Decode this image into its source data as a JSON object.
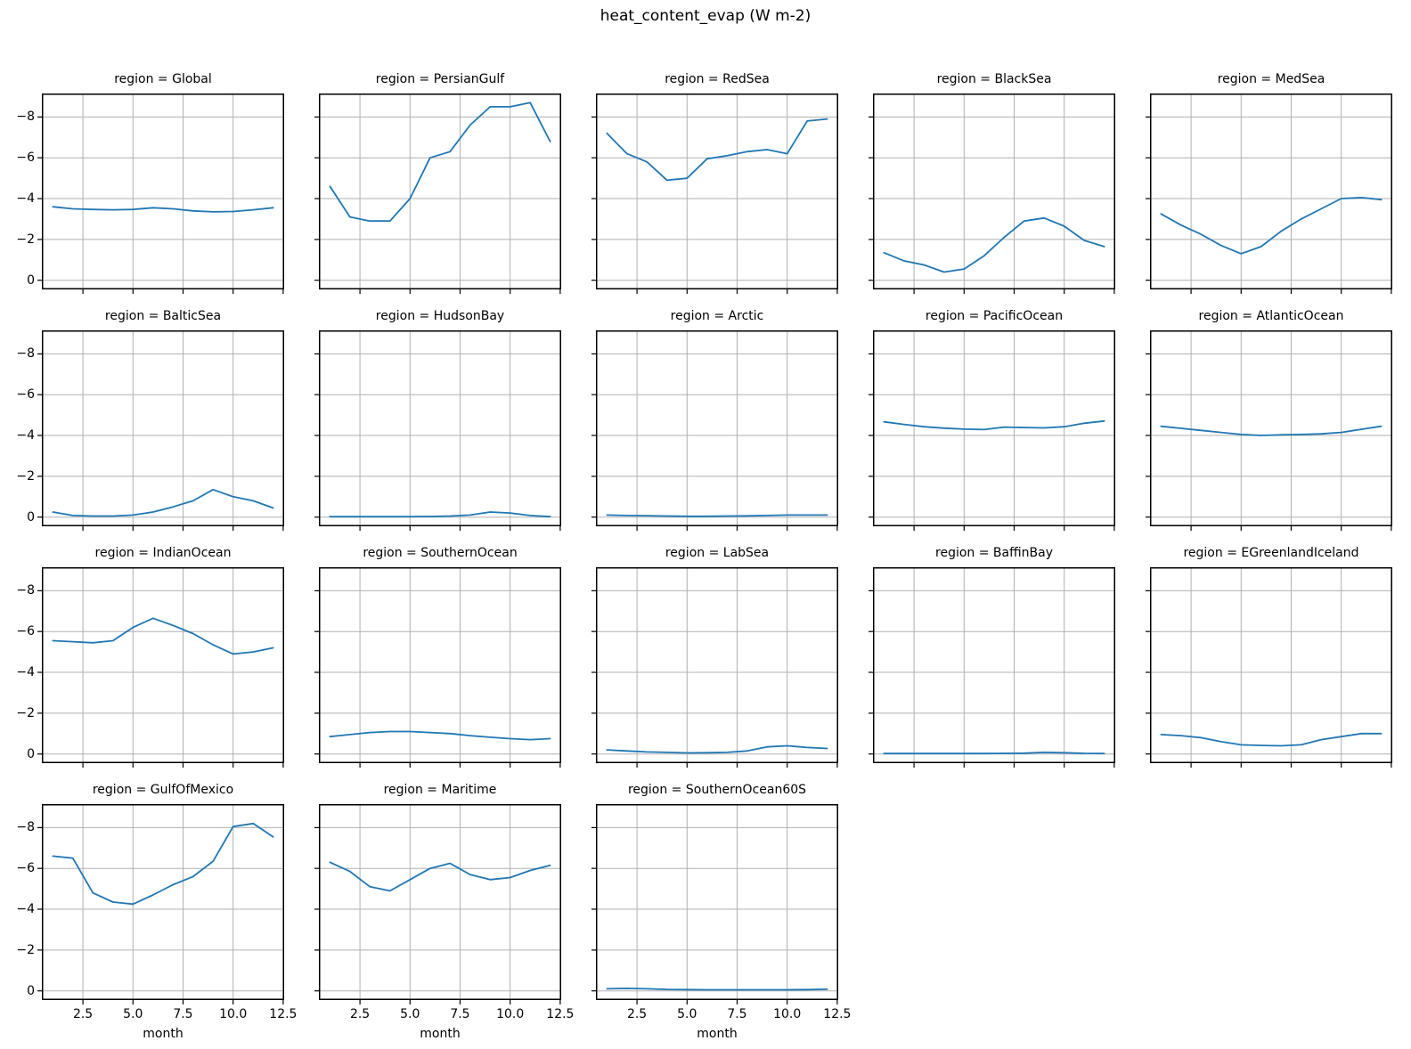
{
  "chart_data": {
    "type": "line",
    "title": "heat_content_evap (W m-2)",
    "xlabel": "month",
    "grid": true,
    "legend": "none",
    "line_color": "#1f77b4",
    "y_axis_inverted": true,
    "x_range": [
      0.45,
      12.55
    ],
    "y_range_top_to_bottom": [
      -9.15,
      0.45
    ],
    "x_ticks": {
      "values": [
        2.5,
        5.0,
        7.5,
        10.0,
        12.5
      ],
      "labels": [
        "2.5",
        "5.0",
        "7.5",
        "10.0",
        "12.5"
      ]
    },
    "y_ticks": {
      "values": [
        -8,
        -6,
        -4,
        -2,
        0
      ],
      "labels": [
        "−8",
        "−6",
        "−4",
        "−2",
        "0"
      ]
    },
    "x": [
      1,
      2,
      3,
      4,
      5,
      6,
      7,
      8,
      9,
      10,
      11,
      12
    ],
    "facets": [
      {
        "region": "Global",
        "label": "region = Global",
        "values": [
          -3.6,
          -3.5,
          -3.47,
          -3.45,
          -3.47,
          -3.55,
          -3.5,
          -3.4,
          -3.35,
          -3.37,
          -3.45,
          -3.55
        ]
      },
      {
        "region": "PersianGulf",
        "label": "region = PersianGulf",
        "values": [
          -4.6,
          -3.1,
          -2.9,
          -2.9,
          -4.0,
          -6.0,
          -6.3,
          -7.6,
          -8.5,
          -8.5,
          -8.7,
          -6.8
        ]
      },
      {
        "region": "RedSea",
        "label": "region = RedSea",
        "values": [
          -7.2,
          -6.2,
          -5.8,
          -4.9,
          -5.0,
          -5.95,
          -6.1,
          -6.3,
          -6.4,
          -6.2,
          -7.8,
          -7.9
        ]
      },
      {
        "region": "BlackSea",
        "label": "region = BlackSea",
        "values": [
          -1.35,
          -0.95,
          -0.75,
          -0.4,
          -0.55,
          -1.2,
          -2.1,
          -2.9,
          -3.05,
          -2.65,
          -1.95,
          -1.65
        ]
      },
      {
        "region": "MedSea",
        "label": "region = MedSea",
        "values": [
          -3.25,
          -2.7,
          -2.25,
          -1.7,
          -1.3,
          -1.65,
          -2.4,
          -3.0,
          -3.5,
          -4.0,
          -4.05,
          -3.95
        ]
      },
      {
        "region": "BalticSea",
        "label": "region = BalticSea",
        "values": [
          -0.25,
          -0.08,
          -0.05,
          -0.05,
          -0.1,
          -0.25,
          -0.5,
          -0.8,
          -1.35,
          -1.0,
          -0.8,
          -0.45
        ]
      },
      {
        "region": "HudsonBay",
        "label": "region = HudsonBay",
        "values": [
          -0.02,
          -0.02,
          -0.02,
          -0.02,
          -0.02,
          -0.03,
          -0.05,
          -0.1,
          -0.25,
          -0.2,
          -0.08,
          -0.02
        ]
      },
      {
        "region": "Arctic",
        "label": "region = Arctic",
        "values": [
          -0.1,
          -0.08,
          -0.07,
          -0.05,
          -0.04,
          -0.04,
          -0.05,
          -0.06,
          -0.08,
          -0.1,
          -0.1,
          -0.1
        ]
      },
      {
        "region": "PacificOcean",
        "label": "region = PacificOcean",
        "values": [
          -4.67,
          -4.54,
          -4.43,
          -4.36,
          -4.31,
          -4.29,
          -4.41,
          -4.39,
          -4.37,
          -4.43,
          -4.6,
          -4.71
        ]
      },
      {
        "region": "AtlanticOcean",
        "label": "region = AtlanticOcean",
        "values": [
          -4.45,
          -4.35,
          -4.25,
          -4.15,
          -4.05,
          -4.0,
          -4.03,
          -4.05,
          -4.08,
          -4.15,
          -4.3,
          -4.45
        ]
      },
      {
        "region": "IndianOcean",
        "label": "region = IndianOcean",
        "values": [
          -5.55,
          -5.5,
          -5.45,
          -5.55,
          -6.2,
          -6.65,
          -6.3,
          -5.9,
          -5.35,
          -4.9,
          -5.0,
          -5.2
        ]
      },
      {
        "region": "SouthernOcean",
        "label": "region = SouthernOcean",
        "values": [
          -0.85,
          -0.95,
          -1.05,
          -1.1,
          -1.1,
          -1.05,
          -1.0,
          -0.9,
          -0.82,
          -0.75,
          -0.7,
          -0.75
        ]
      },
      {
        "region": "LabSea",
        "label": "region = LabSea",
        "values": [
          -0.2,
          -0.15,
          -0.1,
          -0.08,
          -0.05,
          -0.06,
          -0.08,
          -0.15,
          -0.35,
          -0.4,
          -0.32,
          -0.27
        ]
      },
      {
        "region": "BaffinBay",
        "label": "region = BaffinBay",
        "values": [
          -0.02,
          -0.02,
          -0.02,
          -0.02,
          -0.02,
          -0.02,
          -0.03,
          -0.04,
          -0.08,
          -0.06,
          -0.03,
          -0.02
        ]
      },
      {
        "region": "EGreenlandIceland",
        "label": "region = EGreenlandIceland",
        "values": [
          -0.95,
          -0.9,
          -0.8,
          -0.6,
          -0.45,
          -0.42,
          -0.4,
          -0.45,
          -0.7,
          -0.85,
          -1.0,
          -1.0
        ]
      },
      {
        "region": "GulfOfMexico",
        "label": "region = GulfOfMexico",
        "values": [
          -6.6,
          -6.5,
          -4.8,
          -4.35,
          -4.25,
          -4.7,
          -5.2,
          -5.6,
          -6.35,
          -8.05,
          -8.2,
          -7.55
        ]
      },
      {
        "region": "Maritime",
        "label": "region = Maritime",
        "values": [
          -6.3,
          -5.85,
          -5.1,
          -4.9,
          -5.45,
          -6.0,
          -6.25,
          -5.7,
          -5.45,
          -5.55,
          -5.9,
          -6.15
        ]
      },
      {
        "region": "SouthernOcean60S",
        "label": "region = SouthernOcean60S",
        "values": [
          -0.1,
          -0.12,
          -0.1,
          -0.07,
          -0.06,
          -0.05,
          -0.05,
          -0.05,
          -0.05,
          -0.05,
          -0.06,
          -0.08
        ]
      }
    ]
  }
}
